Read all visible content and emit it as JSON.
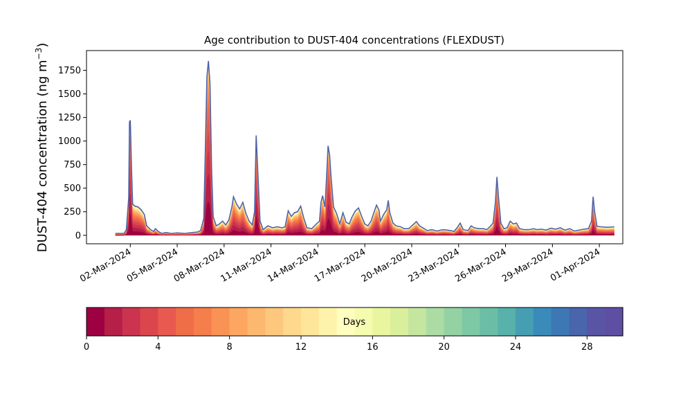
{
  "chart_data": {
    "type": "area",
    "title": "Age contribution to DUST-404 concentrations (FLEXDUST)",
    "xlabel": "",
    "ylabel": "DUST-404 concentration (ng m",
    "ylabel_exponent": "−3",
    "ylabel_close": ")",
    "ylim": [
      -90,
      1960
    ],
    "yticks": [
      0,
      250,
      500,
      750,
      1000,
      1250,
      1500,
      1750
    ],
    "xlim": [
      -1.8,
      32.5
    ],
    "x_unit": "days since 01-Mar-2024",
    "xticks": [
      {
        "x": 1,
        "label": "02-Mar-2024"
      },
      {
        "x": 4,
        "label": "05-Mar-2024"
      },
      {
        "x": 7,
        "label": "08-Mar-2024"
      },
      {
        "x": 10,
        "label": "11-Mar-2024"
      },
      {
        "x": 13,
        "label": "14-Mar-2024"
      },
      {
        "x": 16,
        "label": "17-Mar-2024"
      },
      {
        "x": 19,
        "label": "20-Mar-2024"
      },
      {
        "x": 22,
        "label": "23-Mar-2024"
      },
      {
        "x": 25,
        "label": "26-Mar-2024"
      },
      {
        "x": 28,
        "label": "29-Mar-2024"
      },
      {
        "x": 31,
        "label": "01-Apr-2024"
      }
    ],
    "total": [
      [
        0.05,
        20
      ],
      [
        0.6,
        20
      ],
      [
        0.75,
        60
      ],
      [
        0.9,
        400
      ],
      [
        0.95,
        1200
      ],
      [
        1.0,
        1220
      ],
      [
        1.08,
        700
      ],
      [
        1.15,
        330
      ],
      [
        1.3,
        310
      ],
      [
        1.5,
        300
      ],
      [
        1.7,
        270
      ],
      [
        1.9,
        220
      ],
      [
        2.05,
        100
      ],
      [
        2.3,
        60
      ],
      [
        2.5,
        40
      ],
      [
        2.6,
        70
      ],
      [
        2.8,
        40
      ],
      [
        3.0,
        20
      ],
      [
        3.3,
        30
      ],
      [
        3.6,
        20
      ],
      [
        4.0,
        25
      ],
      [
        4.5,
        20
      ],
      [
        5.0,
        30
      ],
      [
        5.3,
        35
      ],
      [
        5.5,
        50
      ],
      [
        5.7,
        180
      ],
      [
        5.8,
        900
      ],
      [
        5.9,
        1680
      ],
      [
        6.0,
        1850
      ],
      [
        6.1,
        1600
      ],
      [
        6.2,
        700
      ],
      [
        6.3,
        200
      ],
      [
        6.5,
        100
      ],
      [
        6.7,
        120
      ],
      [
        6.9,
        150
      ],
      [
        7.1,
        110
      ],
      [
        7.3,
        160
      ],
      [
        7.5,
        300
      ],
      [
        7.6,
        410
      ],
      [
        7.8,
        330
      ],
      [
        8.0,
        280
      ],
      [
        8.2,
        350
      ],
      [
        8.4,
        230
      ],
      [
        8.6,
        150
      ],
      [
        8.8,
        110
      ],
      [
        8.95,
        250
      ],
      [
        9.05,
        1060
      ],
      [
        9.15,
        700
      ],
      [
        9.3,
        150
      ],
      [
        9.5,
        60
      ],
      [
        9.8,
        100
      ],
      [
        10.1,
        80
      ],
      [
        10.4,
        90
      ],
      [
        10.7,
        80
      ],
      [
        10.9,
        90
      ],
      [
        11.1,
        260
      ],
      [
        11.3,
        200
      ],
      [
        11.5,
        240
      ],
      [
        11.7,
        250
      ],
      [
        11.9,
        310
      ],
      [
        12.1,
        180
      ],
      [
        12.3,
        80
      ],
      [
        12.6,
        70
      ],
      [
        12.9,
        120
      ],
      [
        13.1,
        150
      ],
      [
        13.2,
        350
      ],
      [
        13.3,
        420
      ],
      [
        13.45,
        300
      ],
      [
        13.55,
        600
      ],
      [
        13.65,
        950
      ],
      [
        13.75,
        850
      ],
      [
        13.85,
        600
      ],
      [
        14.0,
        300
      ],
      [
        14.2,
        230
      ],
      [
        14.4,
        120
      ],
      [
        14.6,
        240
      ],
      [
        14.8,
        140
      ],
      [
        15.0,
        120
      ],
      [
        15.2,
        200
      ],
      [
        15.4,
        260
      ],
      [
        15.6,
        290
      ],
      [
        15.8,
        200
      ],
      [
        16.0,
        120
      ],
      [
        16.2,
        100
      ],
      [
        16.4,
        150
      ],
      [
        16.6,
        250
      ],
      [
        16.75,
        320
      ],
      [
        16.9,
        270
      ],
      [
        17.0,
        150
      ],
      [
        17.2,
        220
      ],
      [
        17.4,
        270
      ],
      [
        17.5,
        370
      ],
      [
        17.6,
        240
      ],
      [
        17.8,
        130
      ],
      [
        18.0,
        100
      ],
      [
        18.3,
        90
      ],
      [
        18.5,
        70
      ],
      [
        18.8,
        70
      ],
      [
        19.0,
        100
      ],
      [
        19.2,
        130
      ],
      [
        19.3,
        145
      ],
      [
        19.5,
        100
      ],
      [
        19.8,
        70
      ],
      [
        20.0,
        50
      ],
      [
        20.3,
        60
      ],
      [
        20.6,
        45
      ],
      [
        21.0,
        60
      ],
      [
        21.5,
        50
      ],
      [
        21.7,
        40
      ],
      [
        21.9,
        80
      ],
      [
        22.1,
        130
      ],
      [
        22.3,
        60
      ],
      [
        22.6,
        50
      ],
      [
        22.8,
        100
      ],
      [
        23.0,
        80
      ],
      [
        23.3,
        70
      ],
      [
        23.6,
        70
      ],
      [
        23.8,
        60
      ],
      [
        24.0,
        90
      ],
      [
        24.2,
        130
      ],
      [
        24.35,
        350
      ],
      [
        24.45,
        620
      ],
      [
        24.55,
        400
      ],
      [
        24.7,
        130
      ],
      [
        24.9,
        70
      ],
      [
        25.1,
        80
      ],
      [
        25.3,
        150
      ],
      [
        25.5,
        120
      ],
      [
        25.7,
        130
      ],
      [
        25.9,
        70
      ],
      [
        26.2,
        60
      ],
      [
        26.5,
        60
      ],
      [
        26.8,
        70
      ],
      [
        27.0,
        60
      ],
      [
        27.3,
        65
      ],
      [
        27.6,
        55
      ],
      [
        27.9,
        75
      ],
      [
        28.2,
        65
      ],
      [
        28.5,
        80
      ],
      [
        28.8,
        55
      ],
      [
        29.1,
        70
      ],
      [
        29.4,
        45
      ],
      [
        29.7,
        55
      ],
      [
        30.0,
        65
      ],
      [
        30.3,
        70
      ],
      [
        30.5,
        150
      ],
      [
        30.6,
        410
      ],
      [
        30.7,
        250
      ],
      [
        30.85,
        95
      ],
      [
        31.1,
        90
      ],
      [
        31.5,
        85
      ],
      [
        31.95,
        90
      ]
    ],
    "young_fraction_profile": "red shades dominate peaks; blue/teal cap thin",
    "colorbar": {
      "label": "Days",
      "ticks": [
        0,
        4,
        8,
        12,
        16,
        20,
        24,
        28
      ],
      "min": 0,
      "max": 30,
      "colors": [
        "#9e0142",
        "#b51f48",
        "#cb344e",
        "#db464d",
        "#e85a4f",
        "#ef6e48",
        "#f67e4c",
        "#f99355",
        "#fca662",
        "#fdb870",
        "#fdc87e",
        "#fed88d",
        "#fee59a",
        "#fff3ac",
        "#fffebe",
        "#f5fbaf",
        "#e9f59f",
        "#d9ef9b",
        "#c4e69f",
        "#acdca3",
        "#94d2a4",
        "#7dc8a5",
        "#6bbea5",
        "#58b1aa",
        "#469eb3",
        "#3a8bba",
        "#3d78b5",
        "#4965ab",
        "#5a54a4",
        "#5e4fa2"
      ]
    },
    "grid": false,
    "legend": "horizontal colorbar below plot"
  }
}
